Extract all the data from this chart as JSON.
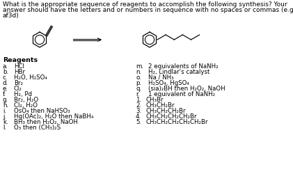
{
  "title_lines": [
    "What is the appropriate sequence of reagents to accomplish the following synthesis? Your",
    "answer should have the letters and or numbers in sequence with no spaces or commas (e.g.",
    "af3d)"
  ],
  "reagents_header": "Reagents",
  "reagents_left": [
    [
      "a.",
      "HCl"
    ],
    [
      "b.",
      "HBr"
    ],
    [
      "c.",
      "H₂O, H₂SO₄"
    ],
    [
      "d.",
      "Br₂"
    ],
    [
      "e.",
      "Cl₂"
    ],
    [
      "f.",
      "H₂, Pd"
    ],
    [
      "g.",
      "Br₂, H₂O"
    ],
    [
      "h.",
      "Cl₂, H₂O"
    ],
    [
      "i.",
      "OsO₄ then NaHSO₃"
    ],
    [
      "j.",
      "Hg(OAc)₂, H₂O then NaBH₄"
    ],
    [
      "k.",
      "BH₃ then H₂O₂, NaOH"
    ],
    [
      "l.",
      "O₃ then (CH₃)₂S"
    ]
  ],
  "reagents_right": [
    [
      "m.",
      "2 equivalents of NaNH₂"
    ],
    [
      "n.",
      "H₂, Lindlar's catalyst"
    ],
    [
      "o.",
      "Na / NH₃"
    ],
    [
      "p.",
      "H₂SO₄, HgSO₄"
    ],
    [
      "q.",
      "(sia)₂BH then H₂O₂, NaOH"
    ],
    [
      "r.",
      "1 equivalent of NaNH₂"
    ]
  ],
  "numbers": [
    [
      "1.",
      "CH₃Br"
    ],
    [
      "2.",
      "CH₃CH₂Br"
    ],
    [
      "3.",
      "CH₃CH₂CH₂Br"
    ],
    [
      "4.",
      "CH₃CH₂CH₂CH₂Br"
    ],
    [
      "5.",
      "CH₃CH₂CH₂CH₂CH₂Br"
    ]
  ],
  "background_color": "#ffffff",
  "text_color": "#000000",
  "font_size_title": 6.5,
  "font_size_body": 6.2,
  "font_size_header": 6.8
}
